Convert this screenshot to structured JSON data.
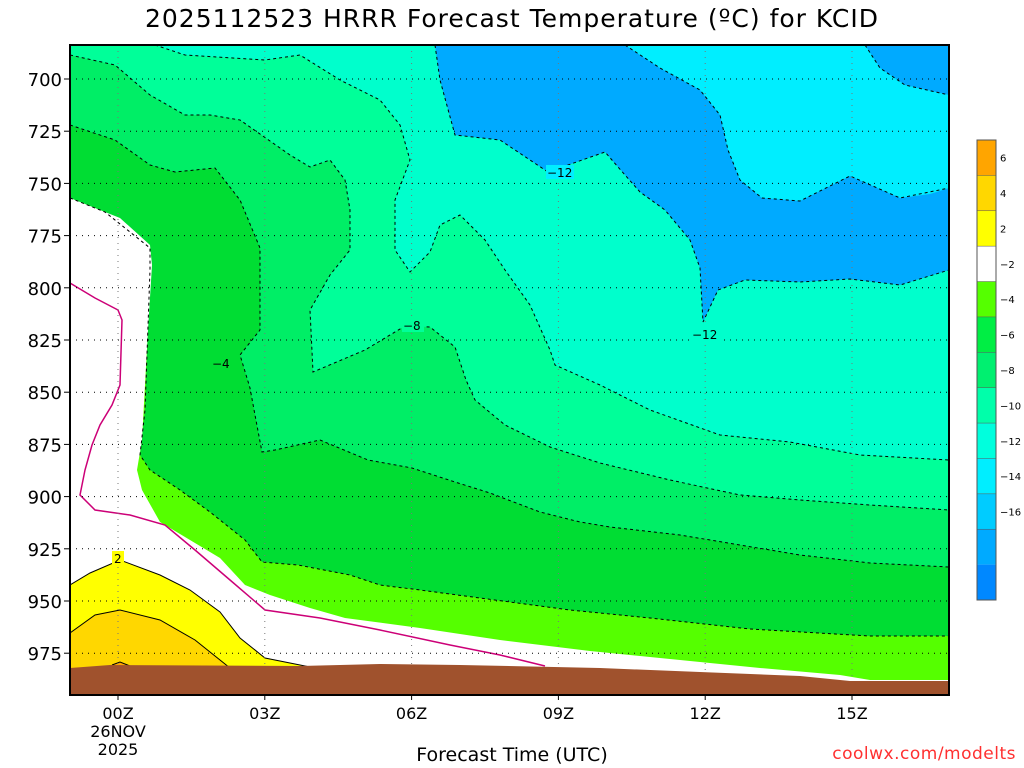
{
  "chart_data": {
    "type": "area",
    "title": "2025112523 HRRR Forecast Temperature (ºC) for KCID",
    "xlabel": "Forecast Time (UTC)",
    "ylabel": "",
    "x_ticks": [
      {
        "label": "00Z",
        "date": "26NOV",
        "year": "2025"
      },
      {
        "label": "03Z"
      },
      {
        "label": "06Z"
      },
      {
        "label": "09Z"
      },
      {
        "label": "12Z"
      },
      {
        "label": "15Z"
      }
    ],
    "y_ticks": [
      "700",
      "725",
      "750",
      "775",
      "800",
      "825",
      "850",
      "875",
      "900",
      "925",
      "950",
      "975"
    ],
    "y_axis": "pressure (inverted)",
    "colorbar": {
      "labels": [
        "6",
        "4",
        "2",
        "−2",
        "−4",
        "−6",
        "−8",
        "−10",
        "−12",
        "−14",
        "−16"
      ],
      "colors": [
        "#ffa500",
        "#ffd700",
        "#ffff00",
        "#ffffff",
        "#55ff00",
        "#00ee44",
        "#00f070",
        "#00ffaa",
        "#00ffdd",
        "#00eeff",
        "#00ccff",
        "#00aaff",
        "#0088ff"
      ]
    },
    "contour_labels": [
      "−12",
      "−12",
      "−8",
      "−4",
      "2"
    ],
    "series": [
      {
        "name": "≤ −14 °C"
      },
      {
        "name": "−12 to −14 °C"
      },
      {
        "name": "−10 to −12 °C"
      },
      {
        "name": "−8 to −10 °C"
      },
      {
        "name": "−6 to −8 °C"
      },
      {
        "name": "−4 to −6 °C"
      },
      {
        "name": "−2 to −4 °C"
      },
      {
        "name": "above 2 °C"
      }
    ],
    "terrain_color": "#a0522d",
    "freezing_line_color": "#cc0077",
    "grid": true
  },
  "credit": "coolwx.com/modelts"
}
